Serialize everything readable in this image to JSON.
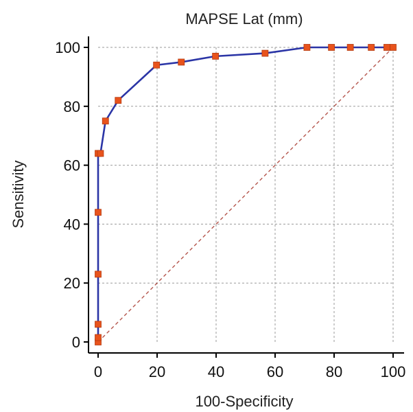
{
  "chart_data": {
    "type": "line",
    "title": "MAPSE Lat (mm)",
    "xlabel": "100-Specificity",
    "ylabel": "Sensitivity",
    "xlim": [
      0,
      100
    ],
    "ylim": [
      0,
      100
    ],
    "xticks": [
      0,
      20,
      40,
      60,
      80,
      100
    ],
    "yticks": [
      0,
      20,
      40,
      60,
      80,
      100
    ],
    "grid": true,
    "series": [
      {
        "role": "roc-curve",
        "color": "#2b35a6",
        "marker_color": "#e8531c",
        "marker": "square",
        "x": [
          0,
          0,
          0,
          0,
          0,
          0,
          0.8,
          2.5,
          6.8,
          19.8,
          28.2,
          39.8,
          56.6,
          70.8,
          79.1,
          85.5,
          92.6,
          97.9,
          100
        ],
        "y": [
          0,
          1.5,
          6,
          23,
          44,
          64,
          64,
          75,
          82,
          94,
          95,
          97,
          98,
          100,
          100,
          100,
          100,
          100,
          100
        ]
      },
      {
        "role": "reference-diagonal",
        "color": "#b5564d",
        "dash": true,
        "x": [
          0,
          100
        ],
        "y": [
          0,
          100
        ]
      }
    ]
  }
}
